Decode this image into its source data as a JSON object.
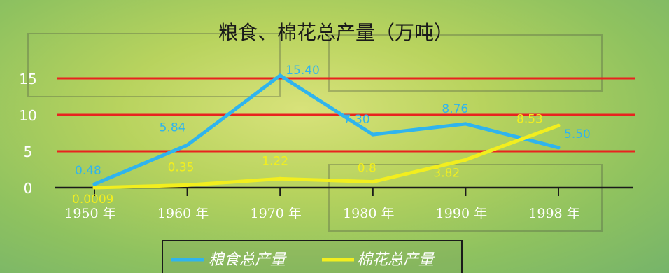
{
  "chart_data": {
    "type": "line",
    "title": "粮食、棉花总产量（万吨）",
    "categories": [
      "1950 年",
      "1960 年",
      "1970 年",
      "1980 年",
      "1990 年",
      "1998 年"
    ],
    "yticks": [
      0,
      5,
      10,
      15
    ],
    "ylim": [
      0,
      17
    ],
    "grid": true,
    "legend_position": "bottom",
    "series": [
      {
        "name": "粮食总产量",
        "color": "#2fb4ee",
        "values": [
          0.48,
          5.84,
          15.4,
          7.3,
          8.76,
          5.5
        ],
        "labels": [
          "0.48",
          "5.84",
          "15.40",
          "7.30",
          "8.76",
          "5.50"
        ]
      },
      {
        "name": "棉花总产量",
        "color": "#f2ee1e",
        "values": [
          0.0009,
          0.35,
          1.22,
          0.8,
          3.82,
          8.53
        ],
        "labels": [
          "0.0009",
          "0.35",
          "1.22",
          "0.8",
          "3.82",
          "8.53"
        ]
      }
    ],
    "gridline_color": "#e8231f"
  }
}
